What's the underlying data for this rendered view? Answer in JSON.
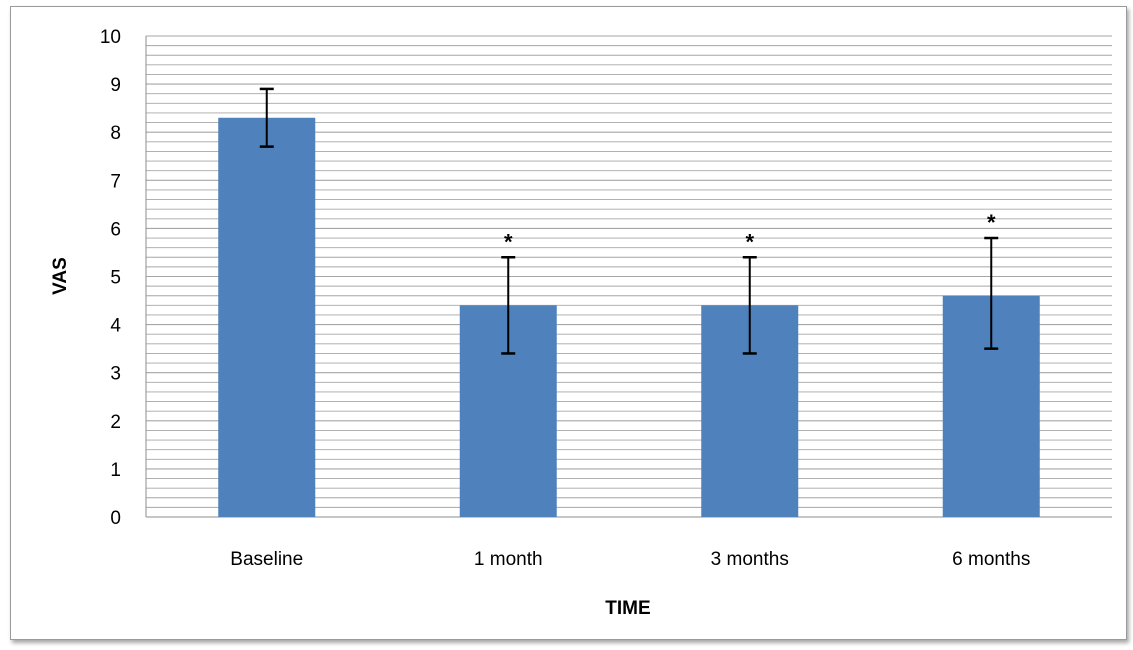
{
  "chart_data": {
    "type": "bar",
    "categories": [
      "Baseline",
      "1 month",
      "3 months",
      "6 months"
    ],
    "values": [
      8.3,
      4.4,
      4.4,
      4.6
    ],
    "error_low": [
      7.7,
      3.4,
      3.4,
      3.5
    ],
    "error_high": [
      8.9,
      5.4,
      5.4,
      5.8
    ],
    "annotations": [
      "",
      "*",
      "*",
      "*"
    ],
    "xlabel": "TIME",
    "ylabel": "VAS",
    "ylim": [
      0,
      10
    ],
    "yticks": [
      "0",
      "1",
      "2",
      "3",
      "4",
      "5",
      "6",
      "7",
      "8",
      "9",
      "10"
    ],
    "minor_gridlines_per_unit": 5,
    "grid": true,
    "legend": "none",
    "bar_color": "#4f81bd",
    "grid_color": "#a6a6a6"
  }
}
